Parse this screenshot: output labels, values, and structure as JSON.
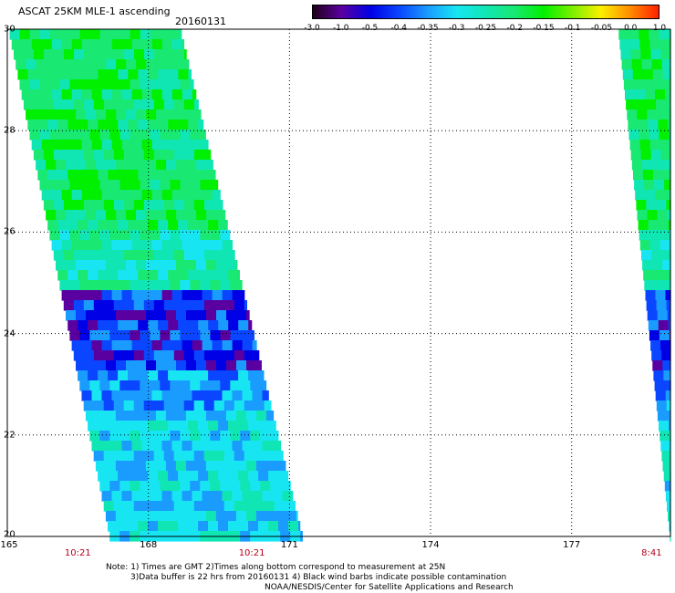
{
  "title": "ASCAT 25KM MLE-1 ascending",
  "date": "20160131",
  "colorbar": {
    "labels": [
      "-3.0",
      "-1.0",
      "-0.5",
      "-0.4",
      "-0.35",
      "-0.3",
      "-0.25",
      "-0.2",
      "-0.15",
      "-0.1",
      "-0.05",
      "0.0",
      "1.0"
    ],
    "colors": [
      "#200018",
      "#5a00a0",
      "#0000e6",
      "#0a46ff",
      "#1a9cff",
      "#17e6f2",
      "#10e6b4",
      "#19e873",
      "#00f000",
      "#7af000",
      "#fbf000",
      "#ff8c00",
      "#ff2000"
    ]
  },
  "axes": {
    "lat_labels": [
      "30",
      "28",
      "26",
      "24",
      "22",
      "20"
    ],
    "lon_labels": [
      "165",
      "168",
      "171",
      "174",
      "177"
    ],
    "lat_range": [
      20,
      30
    ],
    "lon_range": [
      165,
      179.1
    ],
    "grid": "dotted"
  },
  "times": [
    {
      "label": "10:21",
      "lon": 166.5
    },
    {
      "label": "10:21",
      "lon": 170.2
    },
    {
      "label": "8:41",
      "lon": 178.7
    }
  ],
  "notes": [
    "Note: 1) Times are GMT 2)Times along bottom correspond to measurement at 25N",
    "3)Data buffer is 22 hrs from 20160131 4) Black wind barbs indicate possible contamination",
    "NOAA/NESDIS/Center for Satellite Applications and Research"
  ],
  "swaths": [
    {
      "name": "swath-west",
      "lon_left_at_30N": 165.05,
      "lon_left_at_20N": 167.2,
      "lon_right_at_30N": 168.7,
      "lon_right_at_20N": 171.3
    },
    {
      "name": "swath-east",
      "lon_left_at_30N": 178.0,
      "lon_left_at_20N": 179.1,
      "lon_right_at_30N": 179.1,
      "lon_right_at_20N": 179.1
    }
  ],
  "chart_data": {
    "type": "heatmap",
    "title": "ASCAT 25KM MLE-1 ascending",
    "subtitle": "20160131",
    "xlabel": "",
    "ylabel": "",
    "xlim": [
      165,
      179.1
    ],
    "ylim": [
      20,
      30
    ],
    "value_scale": [
      -3.0,
      -1.0,
      -0.5,
      -0.4,
      -0.35,
      -0.3,
      -0.25,
      -0.2,
      -0.15,
      -0.1,
      -0.05,
      0.0,
      1.0
    ],
    "features": [
      {
        "description": "band",
        "lat_range": [
          23.4,
          25.0
        ],
        "value": -0.4
      },
      {
        "description": "band",
        "lat_range": [
          22.5,
          23.4
        ],
        "value": -0.3
      },
      {
        "description": "band",
        "lat_range": [
          25.0,
          26.2
        ],
        "value": -0.25
      },
      {
        "description": "band",
        "lat_range": [
          26.2,
          30.0
        ],
        "value": -0.2
      }
    ]
  }
}
